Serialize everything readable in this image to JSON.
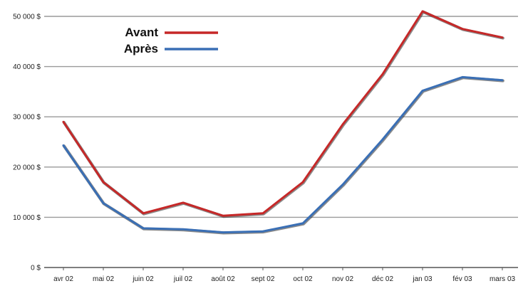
{
  "chart_data": {
    "type": "line",
    "title": "",
    "xlabel": "",
    "ylabel": "",
    "categories": [
      "avr 02",
      "mai 02",
      "juin 02",
      "juil 02",
      "août 02",
      "sept 02",
      "oct 02",
      "nov 02",
      "déc 02",
      "jan 03",
      "fév 03",
      "mars 03"
    ],
    "y_ticks": [
      0,
      10000,
      20000,
      30000,
      40000,
      50000
    ],
    "y_tick_labels": [
      "0 $",
      "10 000 $",
      "20 000 $",
      "30 000 $",
      "40 000 $",
      "50 000 $"
    ],
    "ylim": [
      0,
      50000
    ],
    "grid": true,
    "legend_position": "top-left",
    "series": [
      {
        "name": "Avant",
        "color": "#c62828",
        "values": [
          29000,
          17000,
          10800,
          12900,
          10300,
          10800,
          17000,
          28500,
          38500,
          51000,
          47500,
          45800
        ]
      },
      {
        "name": "Après",
        "color": "#3a6fb5",
        "values": [
          24300,
          12800,
          7800,
          7600,
          7000,
          7200,
          8800,
          16500,
          25500,
          35200,
          37900,
          37300
        ]
      }
    ]
  }
}
